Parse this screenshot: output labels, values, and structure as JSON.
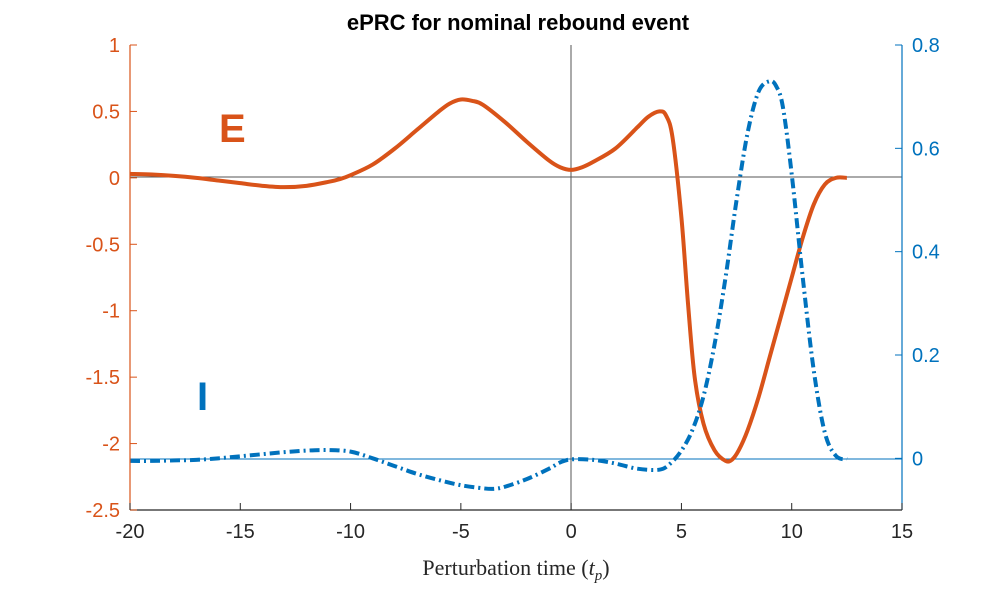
{
  "chart_data": {
    "type": "line",
    "title": "ePRC for nominal rebound event",
    "xlabel_text": "Perturbation time (",
    "xlabel_var": "t",
    "xlabel_sub": "p",
    "xlabel_close": ")",
    "xlim": [
      -20,
      15
    ],
    "ylim_left": [
      -2.5,
      1
    ],
    "ylim_right": [
      -0.1,
      0.8
    ],
    "xticks": [
      "-20",
      "-15",
      "-10",
      "-5",
      "0",
      "5",
      "10",
      "15"
    ],
    "yticks_left": [
      "1",
      "0.5",
      "0",
      "-0.5",
      "-1",
      "-1.5",
      "-2",
      "-2.5"
    ],
    "yticks_right": [
      "0.8",
      "0.6",
      "0.4",
      "0.2",
      "0"
    ],
    "colors": {
      "E": "#D95319",
      "I": "#0072BD",
      "axis": "#262626"
    },
    "annotations": {
      "E": "E",
      "I": "I"
    },
    "series": [
      {
        "name": "E",
        "axis": "left",
        "style": "solid",
        "x": [
          -20,
          -19,
          -18,
          -17,
          -16,
          -15,
          -14,
          -13,
          -12,
          -11,
          -10.5,
          -10,
          -9,
          -8,
          -7,
          -6,
          -5.5,
          -5,
          -4.5,
          -4,
          -3,
          -2,
          -1,
          -0.5,
          0,
          0.5,
          1,
          2,
          3,
          3.5,
          4,
          4.3,
          4.6,
          5,
          5.3,
          5.6,
          6,
          6.5,
          7,
          7.3,
          7.6,
          8,
          8.5,
          9,
          9.5,
          10,
          10.5,
          11,
          11.5,
          12,
          12.5
        ],
        "y": [
          0.03,
          0.025,
          0.015,
          0.0,
          -0.02,
          -0.04,
          -0.06,
          -0.07,
          -0.06,
          -0.03,
          -0.01,
          0.02,
          0.1,
          0.22,
          0.36,
          0.5,
          0.56,
          0.59,
          0.58,
          0.55,
          0.42,
          0.27,
          0.13,
          0.08,
          0.06,
          0.08,
          0.12,
          0.22,
          0.38,
          0.46,
          0.5,
          0.47,
          0.3,
          -0.3,
          -0.95,
          -1.5,
          -1.85,
          -2.05,
          -2.13,
          -2.12,
          -2.05,
          -1.9,
          -1.65,
          -1.35,
          -1.05,
          -0.75,
          -0.45,
          -0.2,
          -0.05,
          0.0,
          0.0
        ]
      },
      {
        "name": "I",
        "axis": "right",
        "style": "dashdot",
        "x": [
          -20,
          -19,
          -18,
          -17,
          -16,
          -15,
          -14,
          -13,
          -12,
          -11,
          -10,
          -9,
          -8,
          -7,
          -6,
          -5,
          -4,
          -3.5,
          -3,
          -2,
          -1,
          -0.5,
          0,
          1,
          2,
          3,
          4,
          4.5,
          5,
          5.5,
          6,
          6.5,
          7,
          7.5,
          8,
          8.5,
          9,
          9.3,
          9.6,
          10,
          10.5,
          11,
          11.5,
          12,
          12.5
        ],
        "y": [
          -0.005,
          -0.005,
          -0.004,
          -0.003,
          0.0,
          0.004,
          0.008,
          0.012,
          0.015,
          0.016,
          0.013,
          0.0,
          -0.015,
          -0.03,
          -0.042,
          -0.052,
          -0.058,
          -0.059,
          -0.055,
          -0.04,
          -0.02,
          -0.008,
          -0.002,
          -0.003,
          -0.01,
          -0.02,
          -0.022,
          -0.01,
          0.015,
          0.055,
          0.12,
          0.22,
          0.35,
          0.5,
          0.63,
          0.71,
          0.73,
          0.72,
          0.68,
          0.55,
          0.35,
          0.17,
          0.05,
          0.005,
          -0.002
        ]
      }
    ]
  }
}
